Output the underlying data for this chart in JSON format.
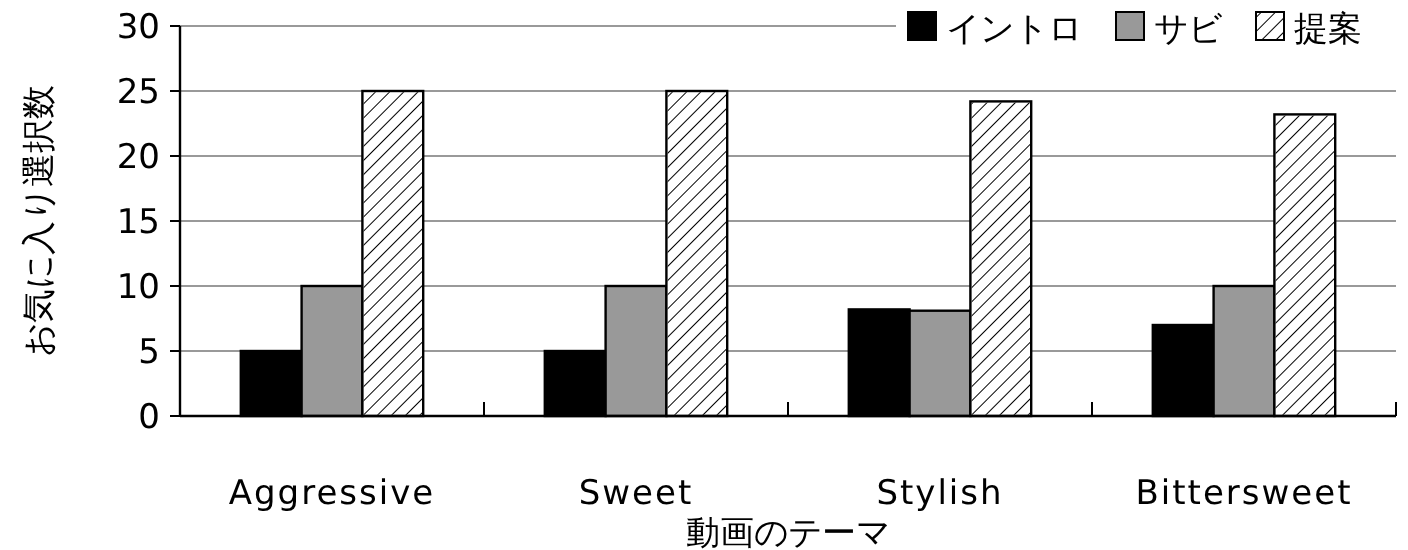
{
  "chart_data": {
    "type": "bar",
    "xlabel": "動画のテーマ",
    "ylabel": "お気に入り選択数",
    "categories": [
      "Aggressive",
      "Sweet",
      "Stylish",
      "Bittersweet"
    ],
    "series": [
      {
        "name": "イントロ",
        "color": "#000000",
        "values": [
          5,
          5,
          8.2,
          7
        ]
      },
      {
        "name": "サビ",
        "color": "#999999",
        "values": [
          10,
          10,
          8.1,
          10
        ]
      },
      {
        "name": "提案",
        "color": "#ffffff",
        "values": [
          25,
          25,
          24.2,
          23.2
        ]
      }
    ],
    "ylim": [
      0,
      30
    ],
    "yticks": [
      0,
      5,
      10,
      15,
      20,
      25,
      30
    ],
    "grid": "y",
    "legend": "top right"
  }
}
